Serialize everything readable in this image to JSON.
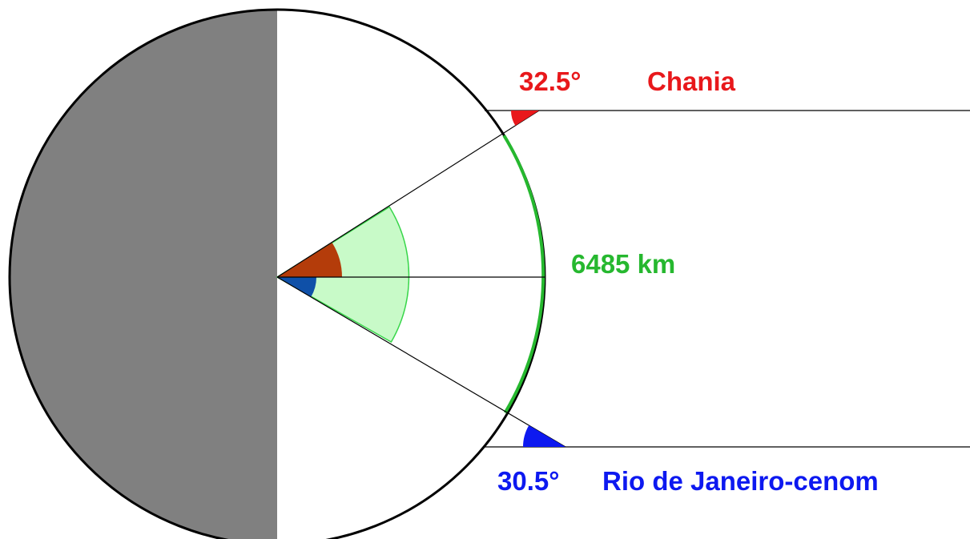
{
  "colors": {
    "night_side": "#808080",
    "earth_outline": "#000000",
    "chania_marker": "#e8181b",
    "rio_marker": "#0d19f0",
    "arc_distance": "#26b82f",
    "center_angle_fill": "#c8fac8",
    "center_angle_stroke": "#38d64a",
    "chania_center_angle": "#b43c0a",
    "rio_center_angle": "#0f50a8",
    "ray": "#000000"
  },
  "labels": {
    "chania_angle": "32.5°",
    "chania_city": "Chania",
    "rio_angle": "30.5°",
    "rio_city": "Rio de Janeiro-cenom",
    "arc_distance": "6485 km"
  }
}
